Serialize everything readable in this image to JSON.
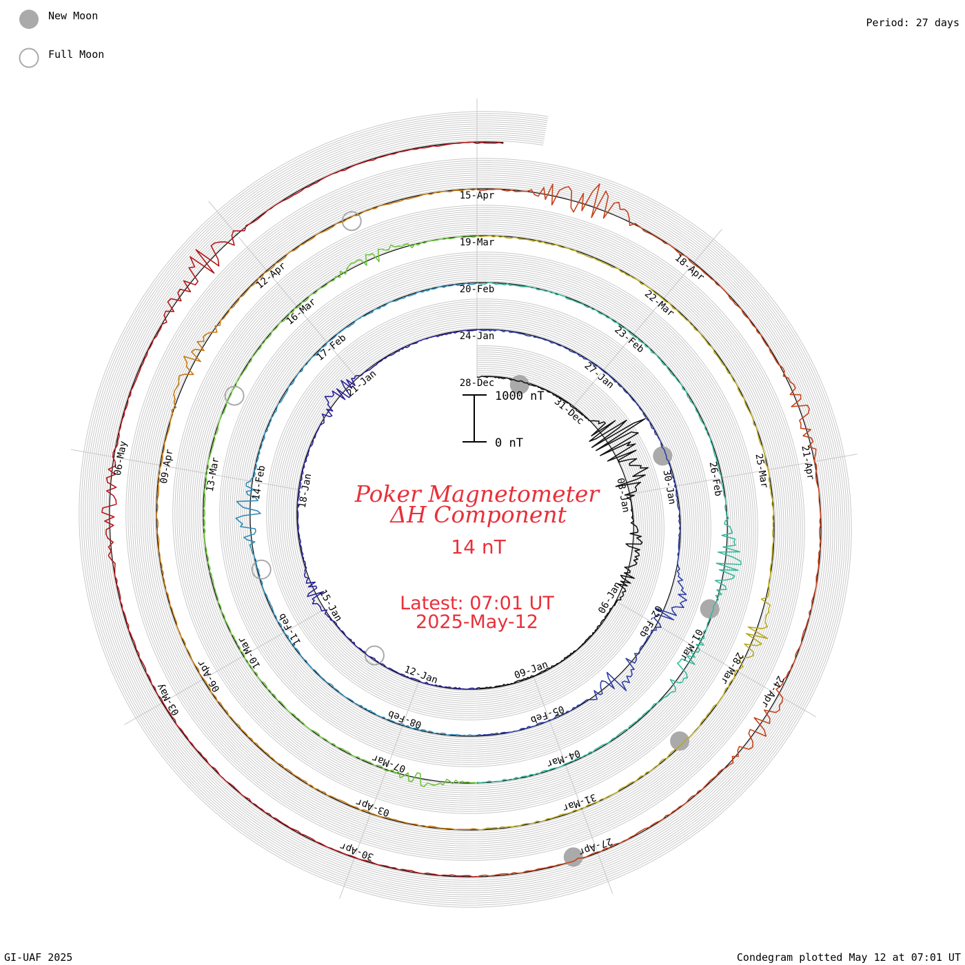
{
  "header": {
    "legend_new_moon": "New Moon",
    "legend_full_moon": "Full Moon",
    "period": "Period: 27 days"
  },
  "footer": {
    "left": "GI-UAF 2025",
    "right": "Condegram plotted May 12 at 07:01 UT"
  },
  "scale_bar": {
    "top_label": "1000 nT",
    "bottom_label": "0 nT"
  },
  "center": {
    "title_line1": "Poker Magnetometer",
    "title_line2": "ΔH Component",
    "value": "14 nT",
    "latest_line1": "Latest: 07:01 UT",
    "latest_line2": "2025-May-12"
  },
  "colors": {
    "text_red": "#e8303a",
    "grid": "#c8c8c8",
    "baseline": "#000000",
    "moon_fill": "#aaaaaa",
    "moon_outline": "#aaaaaa"
  },
  "chart_data": {
    "type": "line",
    "title": "Poker Magnetometer ΔH Component",
    "period_days": 27,
    "start_date": "28-Dec",
    "end_date": "12-May",
    "units": "nT",
    "scale_nT": [
      0,
      1000
    ],
    "date_labels": [
      "28-Dec",
      "31-Dec",
      "03-Jan",
      "06-Jan",
      "09-Jan",
      "12-Jan",
      "15-Jan",
      "18-Jan",
      "21-Jan",
      "24-Jan",
      "27-Jan",
      "30-Jan",
      "02-Feb",
      "05-Feb",
      "08-Feb",
      "11-Feb",
      "14-Feb",
      "17-Feb",
      "20-Feb",
      "23-Feb",
      "26-Feb",
      "01-Mar",
      "04-Mar",
      "07-Mar",
      "10-Mar",
      "13-Mar",
      "16-Mar",
      "19-Mar",
      "22-Mar",
      "25-Mar",
      "28-Mar",
      "31-Mar",
      "03-Apr",
      "06-Apr",
      "09-Apr",
      "12-Apr",
      "15-Apr",
      "18-Apr",
      "21-Apr",
      "24-Apr",
      "27-Apr",
      "30-Apr",
      "03-May",
      "06-May"
    ],
    "new_moons": [
      "29-Dec",
      "29-Jan",
      "28-Feb",
      "29-Mar",
      "27-Apr"
    ],
    "full_moons": [
      "13-Jan",
      "12-Feb",
      "14-Mar",
      "13-Apr"
    ],
    "series_colors": [
      "#141414",
      "#2a2296",
      "#2f3ea3",
      "#2f8cb8",
      "#35b89a",
      "#6fc53c",
      "#b9a91e",
      "#c67a10",
      "#c4421c",
      "#b5161a"
    ],
    "disturbances": [
      {
        "date": "01-Jan",
        "peak_nT": 950
      },
      {
        "date": "02-Jan",
        "peak_nT": 620
      },
      {
        "date": "04-Jan",
        "peak_nT": 280
      },
      {
        "date": "05-Jan",
        "peak_nT": 260
      },
      {
        "date": "15-Jan",
        "peak_nT": 240
      },
      {
        "date": "20-Jan",
        "peak_nT": 380
      },
      {
        "date": "01-Feb",
        "peak_nT": 520
      },
      {
        "date": "03-Feb",
        "peak_nT": 410
      },
      {
        "date": "13-Feb",
        "peak_nT": 430
      },
      {
        "date": "27-Feb",
        "peak_nT": 420
      },
      {
        "date": "01-Mar",
        "peak_nT": 300
      },
      {
        "date": "06-Mar",
        "peak_nT": 180
      },
      {
        "date": "17-Mar",
        "peak_nT": 230
      },
      {
        "date": "27-Mar",
        "peak_nT": 320
      },
      {
        "date": "10-Apr",
        "peak_nT": 290
      },
      {
        "date": "16-Apr",
        "peak_nT": 650
      },
      {
        "date": "20-Apr",
        "peak_nT": 260
      },
      {
        "date": "24-Apr",
        "peak_nT": 300
      },
      {
        "date": "05-May",
        "peak_nT": 260
      },
      {
        "date": "08-May",
        "peak_nT": 480
      }
    ]
  }
}
